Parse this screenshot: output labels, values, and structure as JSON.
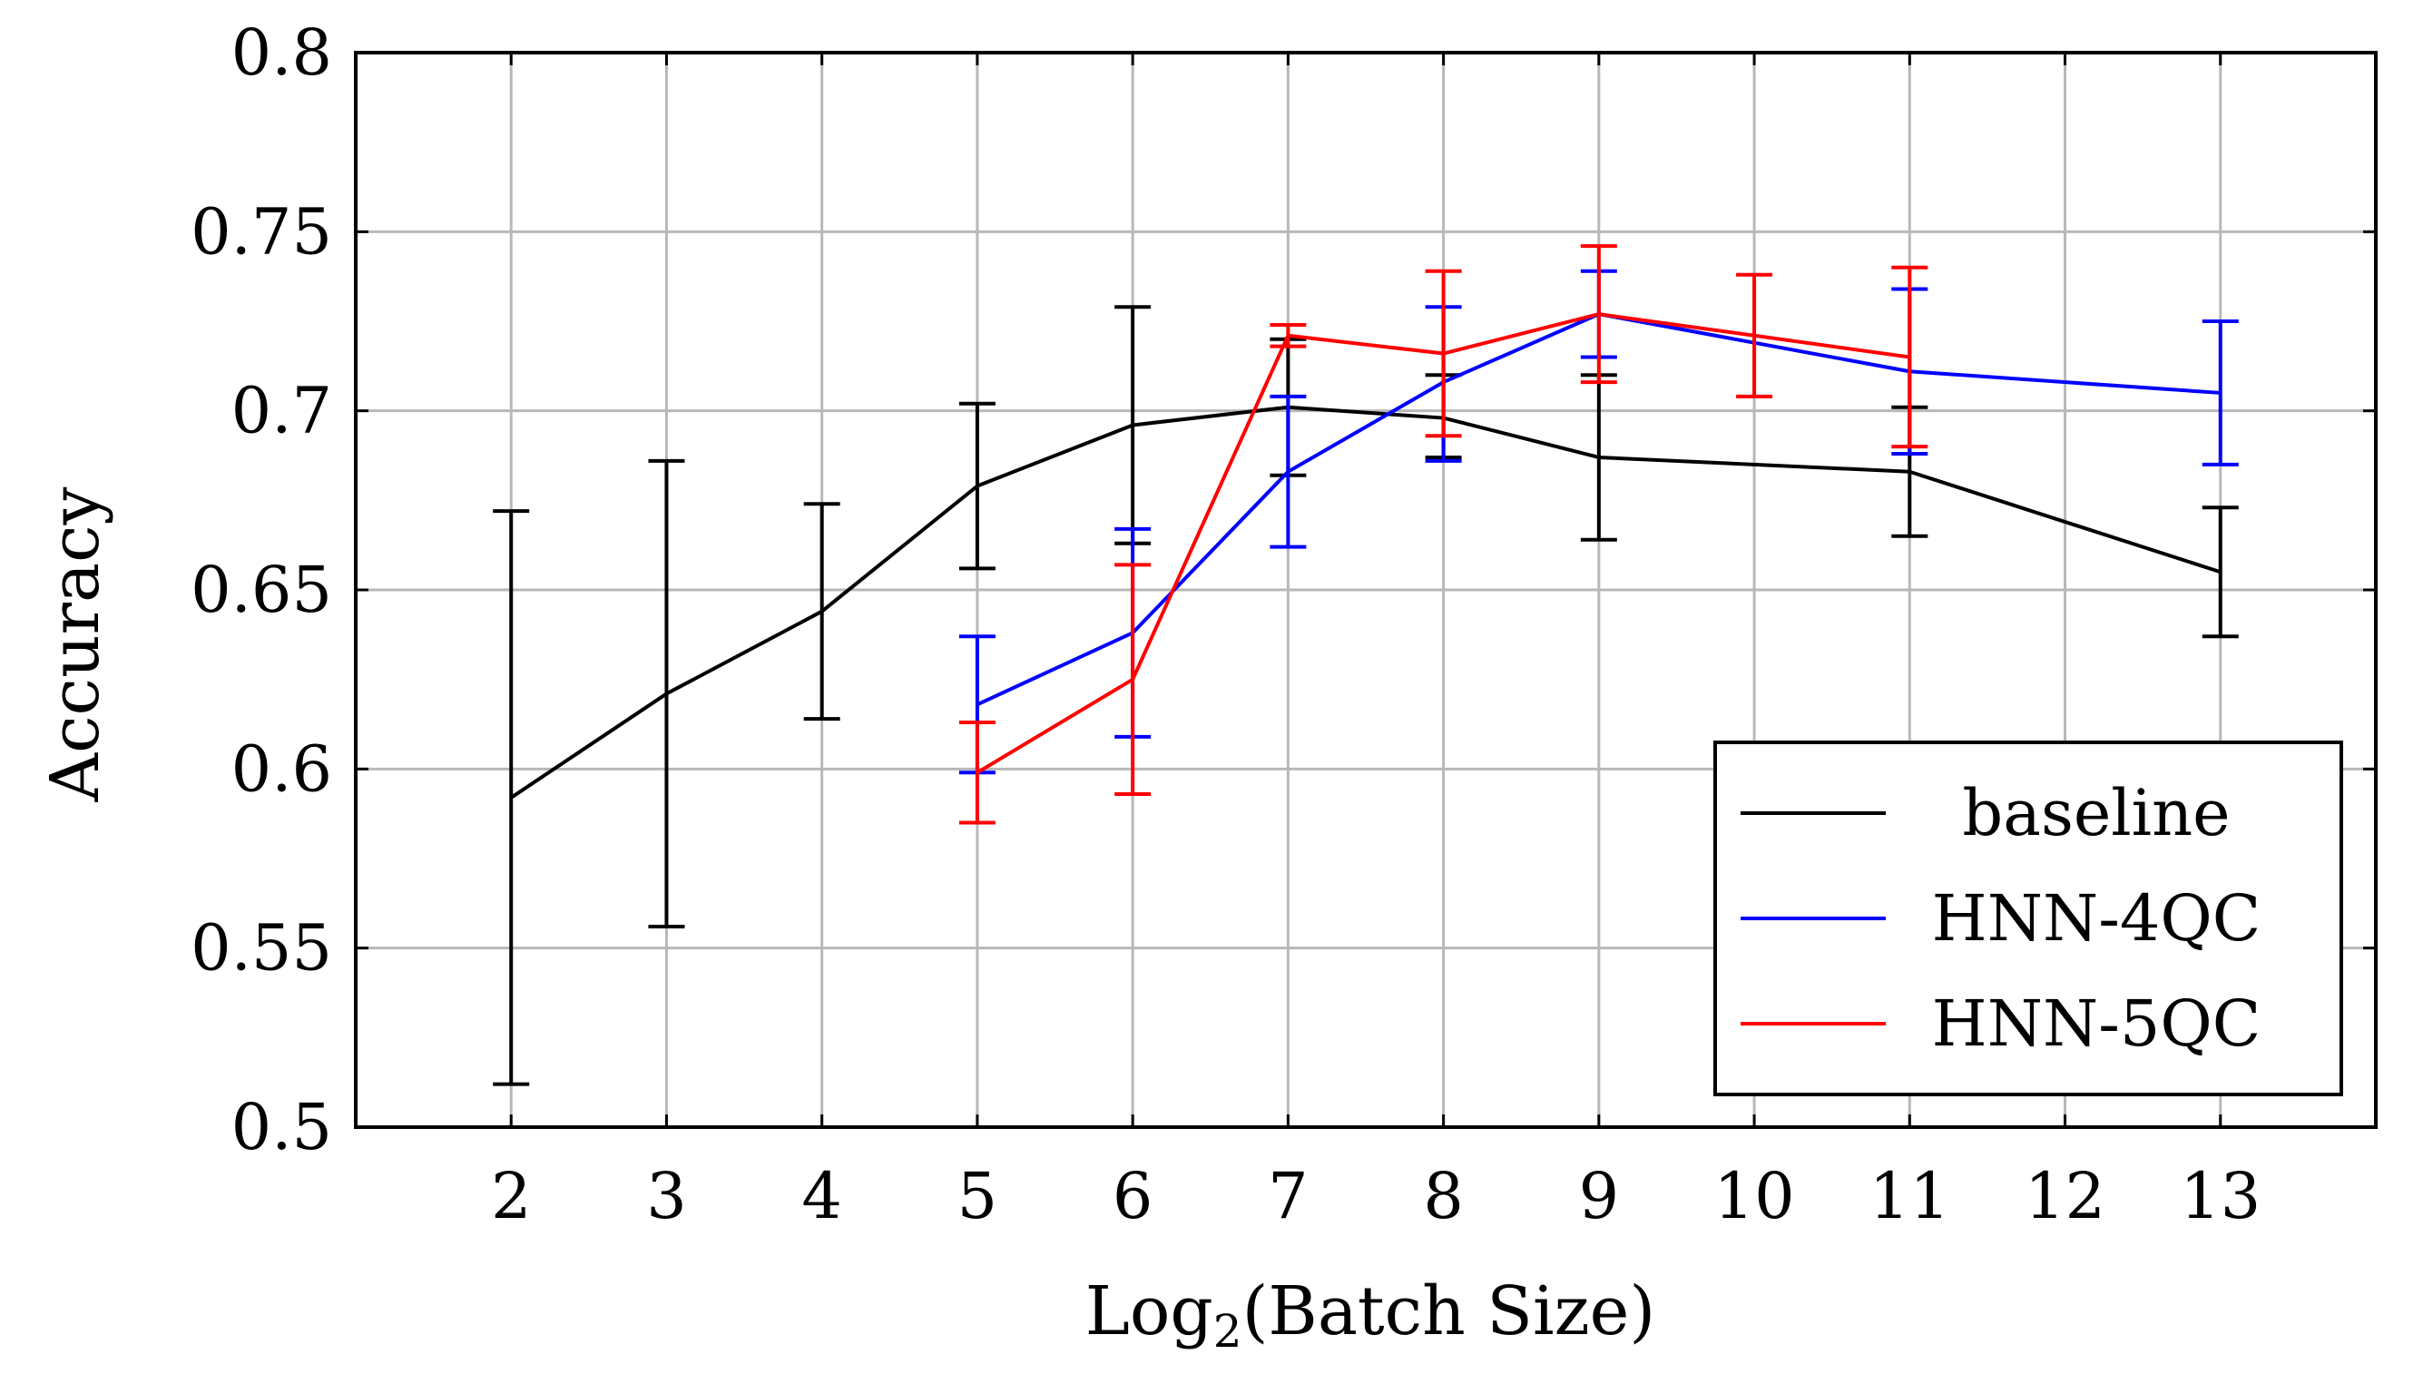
{
  "chart_data": {
    "type": "line",
    "title": "",
    "xlabel_main": "Log",
    "xlabel_sub": "2",
    "xlabel_rest": "(Batch Size)",
    "ylabel": "Accuracy",
    "xlim": [
      1,
      14
    ],
    "ylim": [
      0.5,
      0.8
    ],
    "xticks": [
      2,
      3,
      4,
      5,
      6,
      7,
      8,
      9,
      10,
      11,
      12,
      13
    ],
    "xtick_labels": [
      "2",
      "3",
      "4",
      "5",
      "6",
      "7",
      "8",
      "9",
      "10",
      "11",
      "12",
      "13"
    ],
    "yticks": [
      0.5,
      0.55,
      0.6,
      0.65,
      0.7,
      0.75,
      0.8
    ],
    "ytick_labels": [
      "0.5",
      "0.55",
      "0.6",
      "0.65",
      "0.7",
      "0.75",
      "0.8"
    ],
    "grid": true,
    "legend_position": "bottom-right",
    "series": [
      {
        "name": "baseline",
        "color": "#000000",
        "x": [
          2,
          3,
          4,
          5,
          6,
          7,
          8,
          9,
          11,
          13
        ],
        "y": [
          0.592,
          0.621,
          0.644,
          0.679,
          0.696,
          0.701,
          0.698,
          0.687,
          0.683,
          0.655
        ],
        "error_low": [
          0.512,
          0.556,
          0.614,
          0.656,
          0.663,
          0.682,
          0.687,
          0.664,
          0.665,
          0.637
        ],
        "error_high": [
          0.672,
          0.686,
          0.674,
          0.702,
          0.729,
          0.72,
          0.71,
          0.71,
          0.701,
          0.673
        ]
      },
      {
        "name": "HNN-4QC",
        "color": "#0000ff",
        "x": [
          5,
          6,
          7,
          8,
          9,
          11,
          13
        ],
        "y": [
          0.618,
          0.638,
          0.683,
          0.708,
          0.727,
          0.711,
          0.705
        ],
        "error_low": [
          0.599,
          0.609,
          0.662,
          0.686,
          0.715,
          0.688,
          0.685
        ],
        "error_high": [
          0.637,
          0.667,
          0.704,
          0.729,
          0.739,
          0.734,
          0.725
        ]
      },
      {
        "name": "HNN-5QC",
        "color": "#ff0000",
        "x": [
          5,
          6,
          7,
          8,
          9,
          10,
          11
        ],
        "y": [
          0.599,
          0.625,
          0.721,
          0.716,
          0.727,
          0.721,
          0.715
        ],
        "error_low": [
          0.585,
          0.593,
          0.718,
          0.693,
          0.708,
          0.704,
          0.69
        ],
        "error_high": [
          0.613,
          0.657,
          0.724,
          0.739,
          0.746,
          0.738,
          0.74
        ]
      }
    ]
  }
}
